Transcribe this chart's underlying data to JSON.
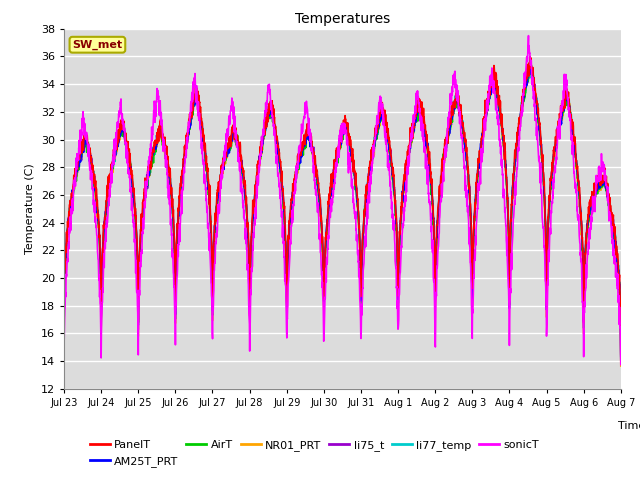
{
  "title": "Temperatures",
  "ylabel": "Temperature (C)",
  "xlabel": "Time",
  "ylim": [
    12,
    38
  ],
  "annotation_text": "SW_met",
  "annotation_bg": "#FFFF99",
  "annotation_border": "#AAAA00",
  "annotation_text_color": "#880000",
  "background_color": "#DCDCDC",
  "series": {
    "PanelT": {
      "color": "#FF0000",
      "lw": 1.2
    },
    "AM25T_PRT": {
      "color": "#0000FF",
      "lw": 1.2
    },
    "AirT": {
      "color": "#00CC00",
      "lw": 1.2
    },
    "NR01_PRT": {
      "color": "#FFA500",
      "lw": 1.2
    },
    "li75_t": {
      "color": "#9900CC",
      "lw": 1.2
    },
    "li77_temp": {
      "color": "#00CCCC",
      "lw": 1.2
    },
    "sonicT": {
      "color": "#FF00FF",
      "lw": 1.2
    }
  },
  "tick_labels": [
    "Jul 23",
    "Jul 24",
    "Jul 25",
    "Jul 26",
    "Jul 27",
    "Jul 28",
    "Jul 29",
    "Jul 30",
    "Jul 31",
    "Aug 1",
    "Aug 2",
    "Aug 3",
    "Aug 4",
    "Aug 5",
    "Aug 6",
    "Aug 7"
  ],
  "n_days": 15,
  "pts_per_day": 144,
  "base_min": 14.2,
  "nr01_min": 13.5,
  "daily_max_base": [
    30.0,
    31.0,
    30.5,
    33.5,
    30.5,
    32.5,
    30.5,
    31.0,
    32.0,
    32.5,
    33.0,
    34.5,
    35.5,
    33.5,
    27.5
  ],
  "sonic_extra": [
    1.5,
    1.5,
    3.0,
    1.0,
    2.0,
    1.5,
    2.0,
    0.5,
    1.0,
    1.0,
    2.0,
    0.5,
    1.5,
    1.0,
    1.0
  ],
  "peak_time": 0.58,
  "sharpness": 3.5
}
